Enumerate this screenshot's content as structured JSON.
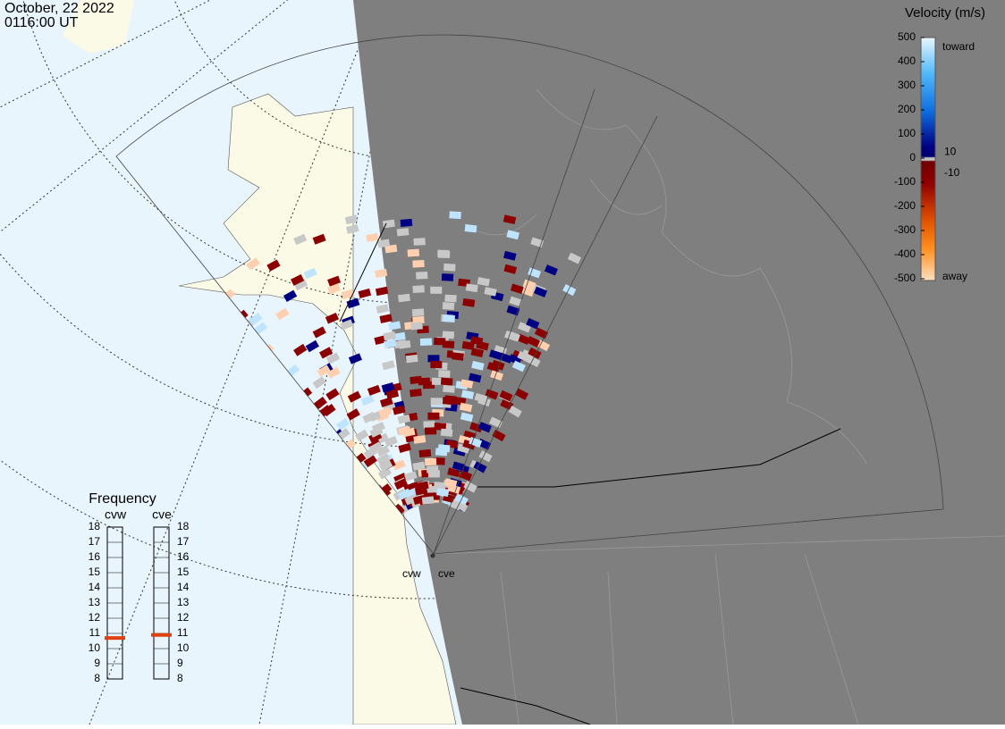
{
  "header": {
    "date": "October, 22 2022",
    "time": "0116:00 UT"
  },
  "colorbar": {
    "title": "Velocity (m/s)",
    "lim": [
      -500,
      500
    ],
    "ticks": [
      500,
      400,
      300,
      200,
      100,
      0,
      -100,
      -200,
      -300,
      -400,
      -500
    ],
    "inner_ticks": [
      10,
      -10
    ],
    "toward_label": "toward",
    "away_label": "away"
  },
  "frequency": {
    "title": "Frequency",
    "lim": [
      8,
      18
    ],
    "ticks": [
      18,
      17,
      16,
      15,
      14,
      13,
      12,
      11,
      10,
      9,
      8
    ],
    "radars": [
      {
        "name": "cvw",
        "value": 10.7,
        "color": "#e04010"
      },
      {
        "name": "cve",
        "value": 10.9,
        "color": "#e04010"
      }
    ]
  },
  "sites": [
    "cvw",
    "cve"
  ]
}
